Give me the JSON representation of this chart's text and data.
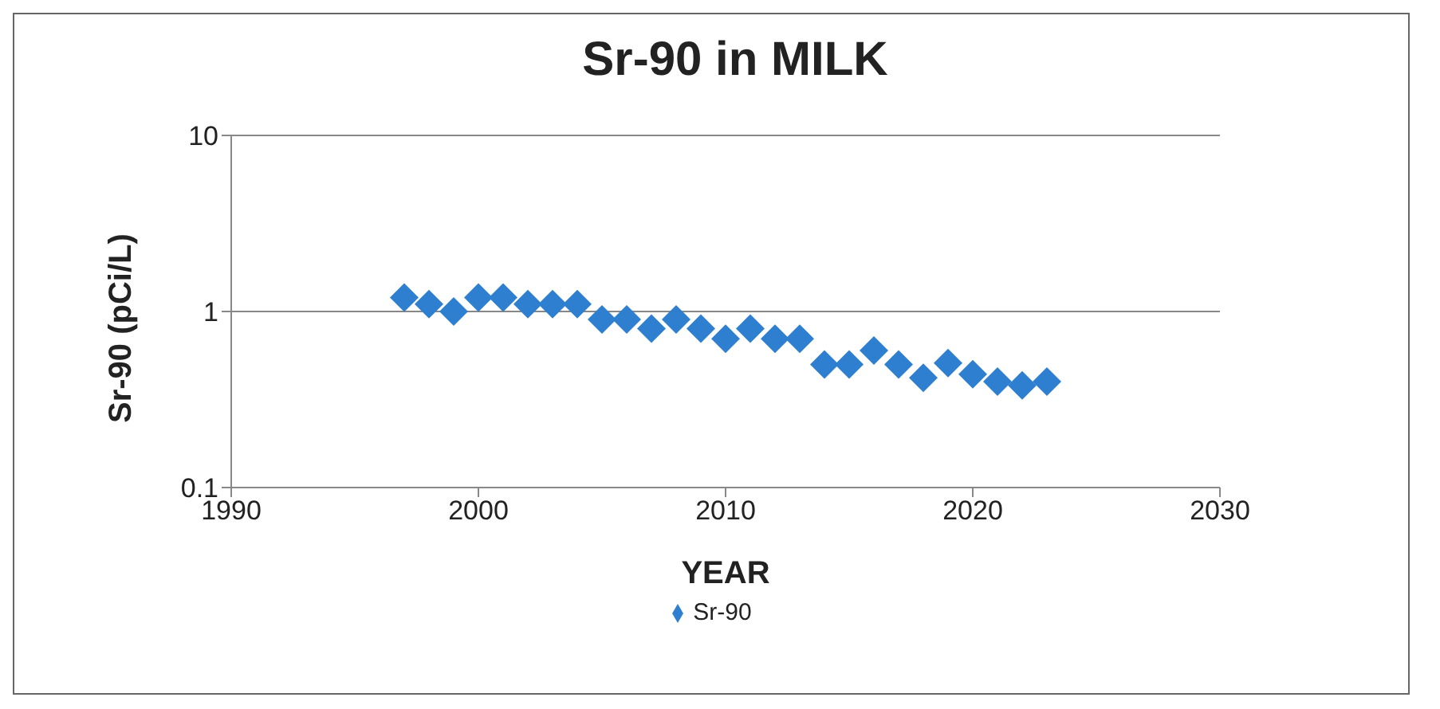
{
  "chart_data": {
    "type": "scatter",
    "title": "Sr-90 in MILK",
    "xlabel": "YEAR",
    "ylabel": "Sr-90 (pCi/L)",
    "x": [
      1997,
      1998,
      1999,
      2000,
      2001,
      2002,
      2003,
      2004,
      2005,
      2006,
      2007,
      2008,
      2009,
      2010,
      2011,
      2012,
      2013,
      2014,
      2015,
      2016,
      2017,
      2018,
      2019,
      2020,
      2021,
      2022,
      2023
    ],
    "series": [
      {
        "name": "Sr-90",
        "color": "#2e7fd0",
        "values": [
          1.2,
          1.1,
          1.0,
          1.2,
          1.2,
          1.1,
          1.1,
          1.1,
          0.9,
          0.9,
          0.8,
          0.9,
          0.8,
          0.7,
          0.8,
          0.7,
          0.7,
          0.5,
          0.5,
          0.6,
          0.5,
          0.42,
          0.51,
          0.44,
          0.4,
          0.38,
          0.4
        ]
      }
    ],
    "xlim": [
      1990,
      2030
    ],
    "xticks": [
      1990,
      2000,
      2010,
      2020,
      2030
    ],
    "ylim": [
      0.1,
      10
    ],
    "yticks": [
      0.1,
      1,
      10
    ],
    "log": "y",
    "grid": "y",
    "legend": "bottom",
    "marker": "diamond"
  }
}
